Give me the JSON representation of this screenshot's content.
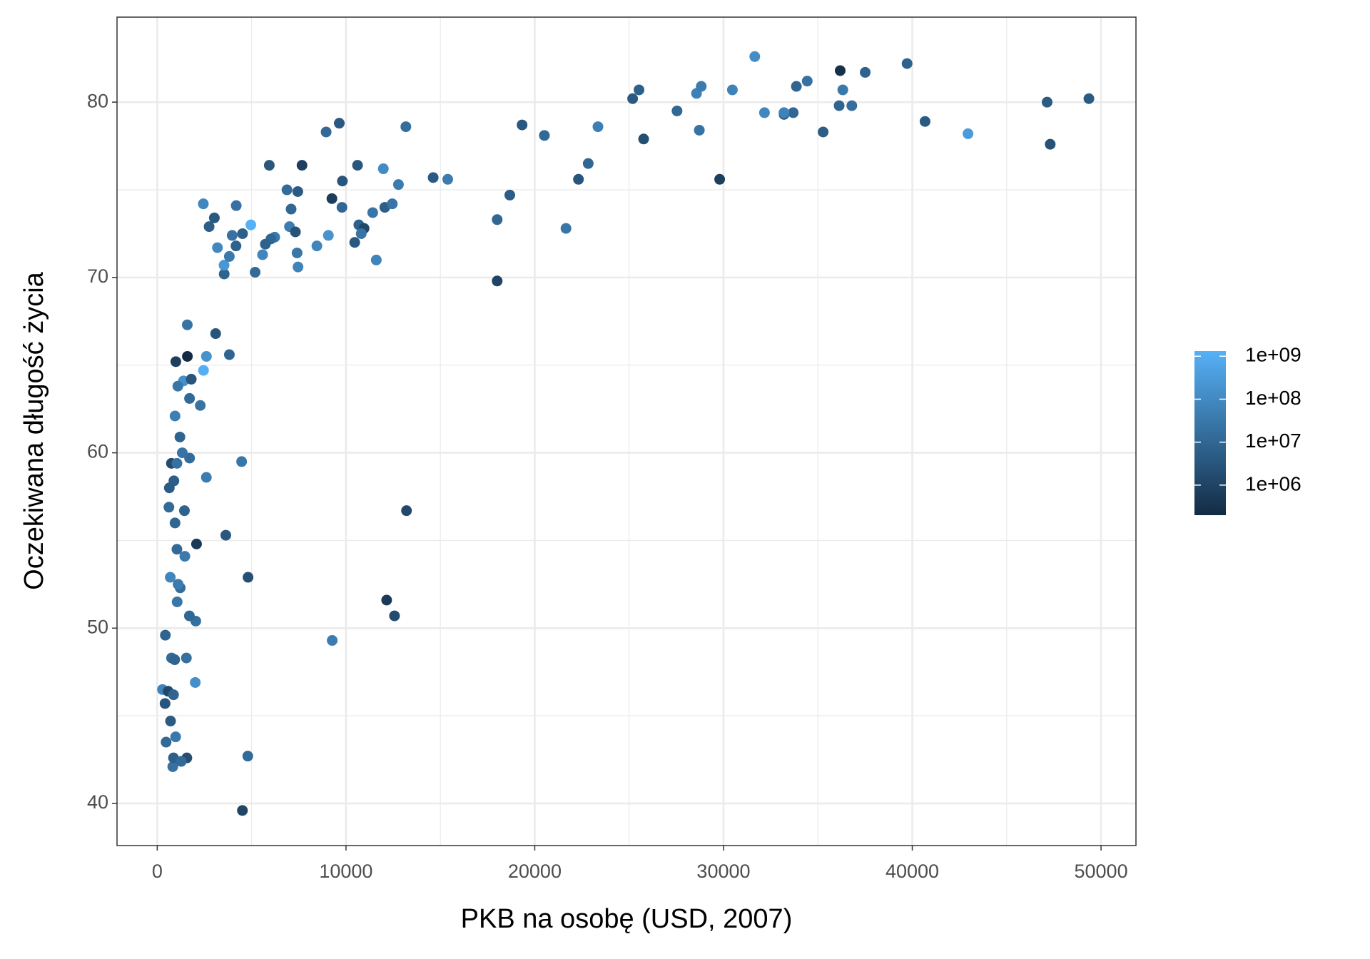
{
  "chart_data": {
    "type": "scatter",
    "xlabel": "PKB na osobę (USD, 2007)",
    "ylabel": "Oczekiwana długość życia",
    "x": [
      975,
      5937,
      6223,
      4797,
      12779,
      34435,
      36126,
      29796,
      1391,
      33693,
      1441,
      3822,
      7446,
      12570,
      9066,
      10681,
      1217,
      430,
      1713,
      2042,
      36319,
      706,
      1704,
      13172,
      4959,
      7007,
      986,
      278,
      3633,
      9645,
      1545,
      14619,
      8948,
      22833,
      35278,
      2082,
      6025,
      6873,
      5581,
      5728,
      12154,
      641,
      691,
      33207,
      30470,
      13206,
      753,
      32170,
      1328,
      27538,
      5186,
      943,
      579,
      1202,
      3548,
      39725,
      18009,
      36181,
      2452,
      3541,
      11606,
      4471,
      40676,
      25523,
      28570,
      7321,
      31656,
      4519,
      1463,
      1593,
      23348,
      47307,
      10461,
      1569,
      415,
      12057,
      1045,
      759,
      12452,
      1043,
      1803,
      10957,
      11978,
      3096,
      9254,
      3820,
      824,
      944,
      4811,
      1091,
      36798,
      25185,
      2749,
      620,
      2014,
      49357,
      22316,
      2606,
      9809,
      4173,
      7409,
      3190,
      15390,
      20510,
      19329,
      7670,
      10808,
      863,
      1598,
      21655,
      1712,
      9787,
      863,
      47143,
      18678,
      25768,
      926,
      9270,
      28821,
      3970,
      2602,
      4513,
      33860,
      37506,
      4185,
      28718,
      1107,
      7458,
      883,
      18009,
      7093,
      8458,
      1056,
      33203,
      42952,
      10611,
      11416,
      2442,
      3026,
      2281,
      1271,
      470
    ],
    "values": [
      43.8,
      76.4,
      72.3,
      42.7,
      75.3,
      81.2,
      79.8,
      75.6,
      64.1,
      79.4,
      56.7,
      65.6,
      74.9,
      50.7,
      72.4,
      73.0,
      52.3,
      49.6,
      59.7,
      50.4,
      80.7,
      44.7,
      50.7,
      78.6,
      73.0,
      72.9,
      65.2,
      46.5,
      55.3,
      78.8,
      48.3,
      75.7,
      78.3,
      76.5,
      78.3,
      54.8,
      72.2,
      75.0,
      71.3,
      71.9,
      51.6,
      58.0,
      52.9,
      79.3,
      80.7,
      56.7,
      59.4,
      79.4,
      60.0,
      79.5,
      70.3,
      56.0,
      46.4,
      60.9,
      70.2,
      82.2,
      73.3,
      81.8,
      64.7,
      70.7,
      71.0,
      59.5,
      78.9,
      80.7,
      80.5,
      72.6,
      82.6,
      72.5,
      54.1,
      67.3,
      78.6,
      77.6,
      72.0,
      42.6,
      45.7,
      74.0,
      59.4,
      48.3,
      74.2,
      54.5,
      64.2,
      72.8,
      76.2,
      66.8,
      74.5,
      71.2,
      42.1,
      62.1,
      52.9,
      63.8,
      79.8,
      80.2,
      72.9,
      56.9,
      46.9,
      80.2,
      75.6,
      65.5,
      75.5,
      71.8,
      71.4,
      71.7,
      75.6,
      78.1,
      78.7,
      76.4,
      72.5,
      46.2,
      65.5,
      72.8,
      63.1,
      74.0,
      42.6,
      80.0,
      74.7,
      77.9,
      48.2,
      49.3,
      80.9,
      72.4,
      58.6,
      39.6,
      80.9,
      81.7,
      74.1,
      78.4,
      52.5,
      70.6,
      58.4,
      69.8,
      73.9,
      71.8,
      51.5,
      79.4,
      78.2,
      76.4,
      73.7,
      74.2,
      73.4,
      62.7,
      42.4,
      43.5
    ],
    "population": [
      31900000.0,
      3600000.0,
      33300000.0,
      12400000.0,
      40300000.0,
      20400000.0,
      8200000.0,
      710000.0,
      150000000.0,
      10400000.0,
      8100000.0,
      9100000.0,
      4550000.0,
      1640000.0,
      190000000.0,
      7300000.0,
      14300000.0,
      8400000.0,
      14100000.0,
      17700000.0,
      33400000.0,
      4400000.0,
      10200000.0,
      16300000.0,
      1318000000.0,
      44200000.0,
      710000.0,
      64600000.0,
      3800000.0,
      4100000.0,
      18000000.0,
      4500000.0,
      11400000.0,
      10200000.0,
      5500000.0,
      500000.0,
      9300000.0,
      13800000.0,
      80300000.0,
      6900000.0,
      550000.0,
      4900000.0,
      76500000.0,
      5200000.0,
      61000000.0,
      1450000.0,
      1700000.0,
      82400000.0,
      22900000.0,
      10700000.0,
      12600000.0,
      9900000.0,
      1470000.0,
      8500000.0,
      7500000.0,
      6980000.0,
      9960000.0,
      300000.0,
      1110000000.0,
      224000000.0,
      69500000.0,
      27500000.0,
      4100000.0,
      6400000.0,
      58100000.0,
      2800000.0,
      127000000.0,
      6050000.0,
      35600000.0,
      23300000.0,
      49000000.0,
      2500000.0,
      3900000.0,
      2000000.0,
      3200000.0,
      6000000.0,
      19200000.0,
      13300000.0,
      24800000.0,
      12000000.0,
      3300000.0,
      1250000.0,
      108700000.0,
      2900000.0,
      680000.0,
      33800000.0,
      20000000.0,
      47800000.0,
      2060000.0,
      28900000.0,
      16600000.0,
      4100000.0,
      5700000.0,
      12900000.0,
      135000000.0,
      4600000.0,
      3200000.0,
      169000000.0,
      3200000.0,
      6700000.0,
      28700000.0,
      91000000.0,
      38500000.0,
      10600000.0,
      3900000.0,
      800000.0,
      22300000.0,
      8900000.0,
      200000.0,
      27600000.0,
      12300000.0,
      10200000.0,
      6100000.0,
      4550000.0,
      5450000.0,
      2000000.0,
      9100000.0,
      44000000.0,
      40400000.0,
      20400000.0,
      42300000.0,
      1100000.0,
      9000000.0,
      7550000.0,
      19300000.0,
      23200000.0,
      38100000.0,
      65000000.0,
      5700000.0,
      1060000.0,
      10300000.0,
      71200000.0,
      29200000.0,
      60800000.0,
      301000000.0,
      3450000.0,
      26100000.0,
      85300000.0,
      4000000.0,
      22200000.0,
      11700000.0,
      12300000.0
    ],
    "xlim": [
      -2130,
      51850
    ],
    "ylim": [
      37.6,
      84.85
    ],
    "xticks": [
      0,
      10000,
      20000,
      30000,
      40000,
      50000
    ],
    "yticks": [
      40,
      50,
      60,
      70,
      80
    ],
    "grid": true,
    "colorbar": {
      "lim": [
        199579,
        1318683096
      ],
      "log": true,
      "colors": [
        "#132B43",
        "#56B1F7"
      ],
      "ticks": [
        {
          "value": 1000000,
          "label": "1e+06"
        },
        {
          "value": 10000000,
          "label": "1e+07"
        },
        {
          "value": 100000000,
          "label": "1e+08"
        },
        {
          "value": 1000000000,
          "label": "1e+09"
        }
      ]
    }
  }
}
